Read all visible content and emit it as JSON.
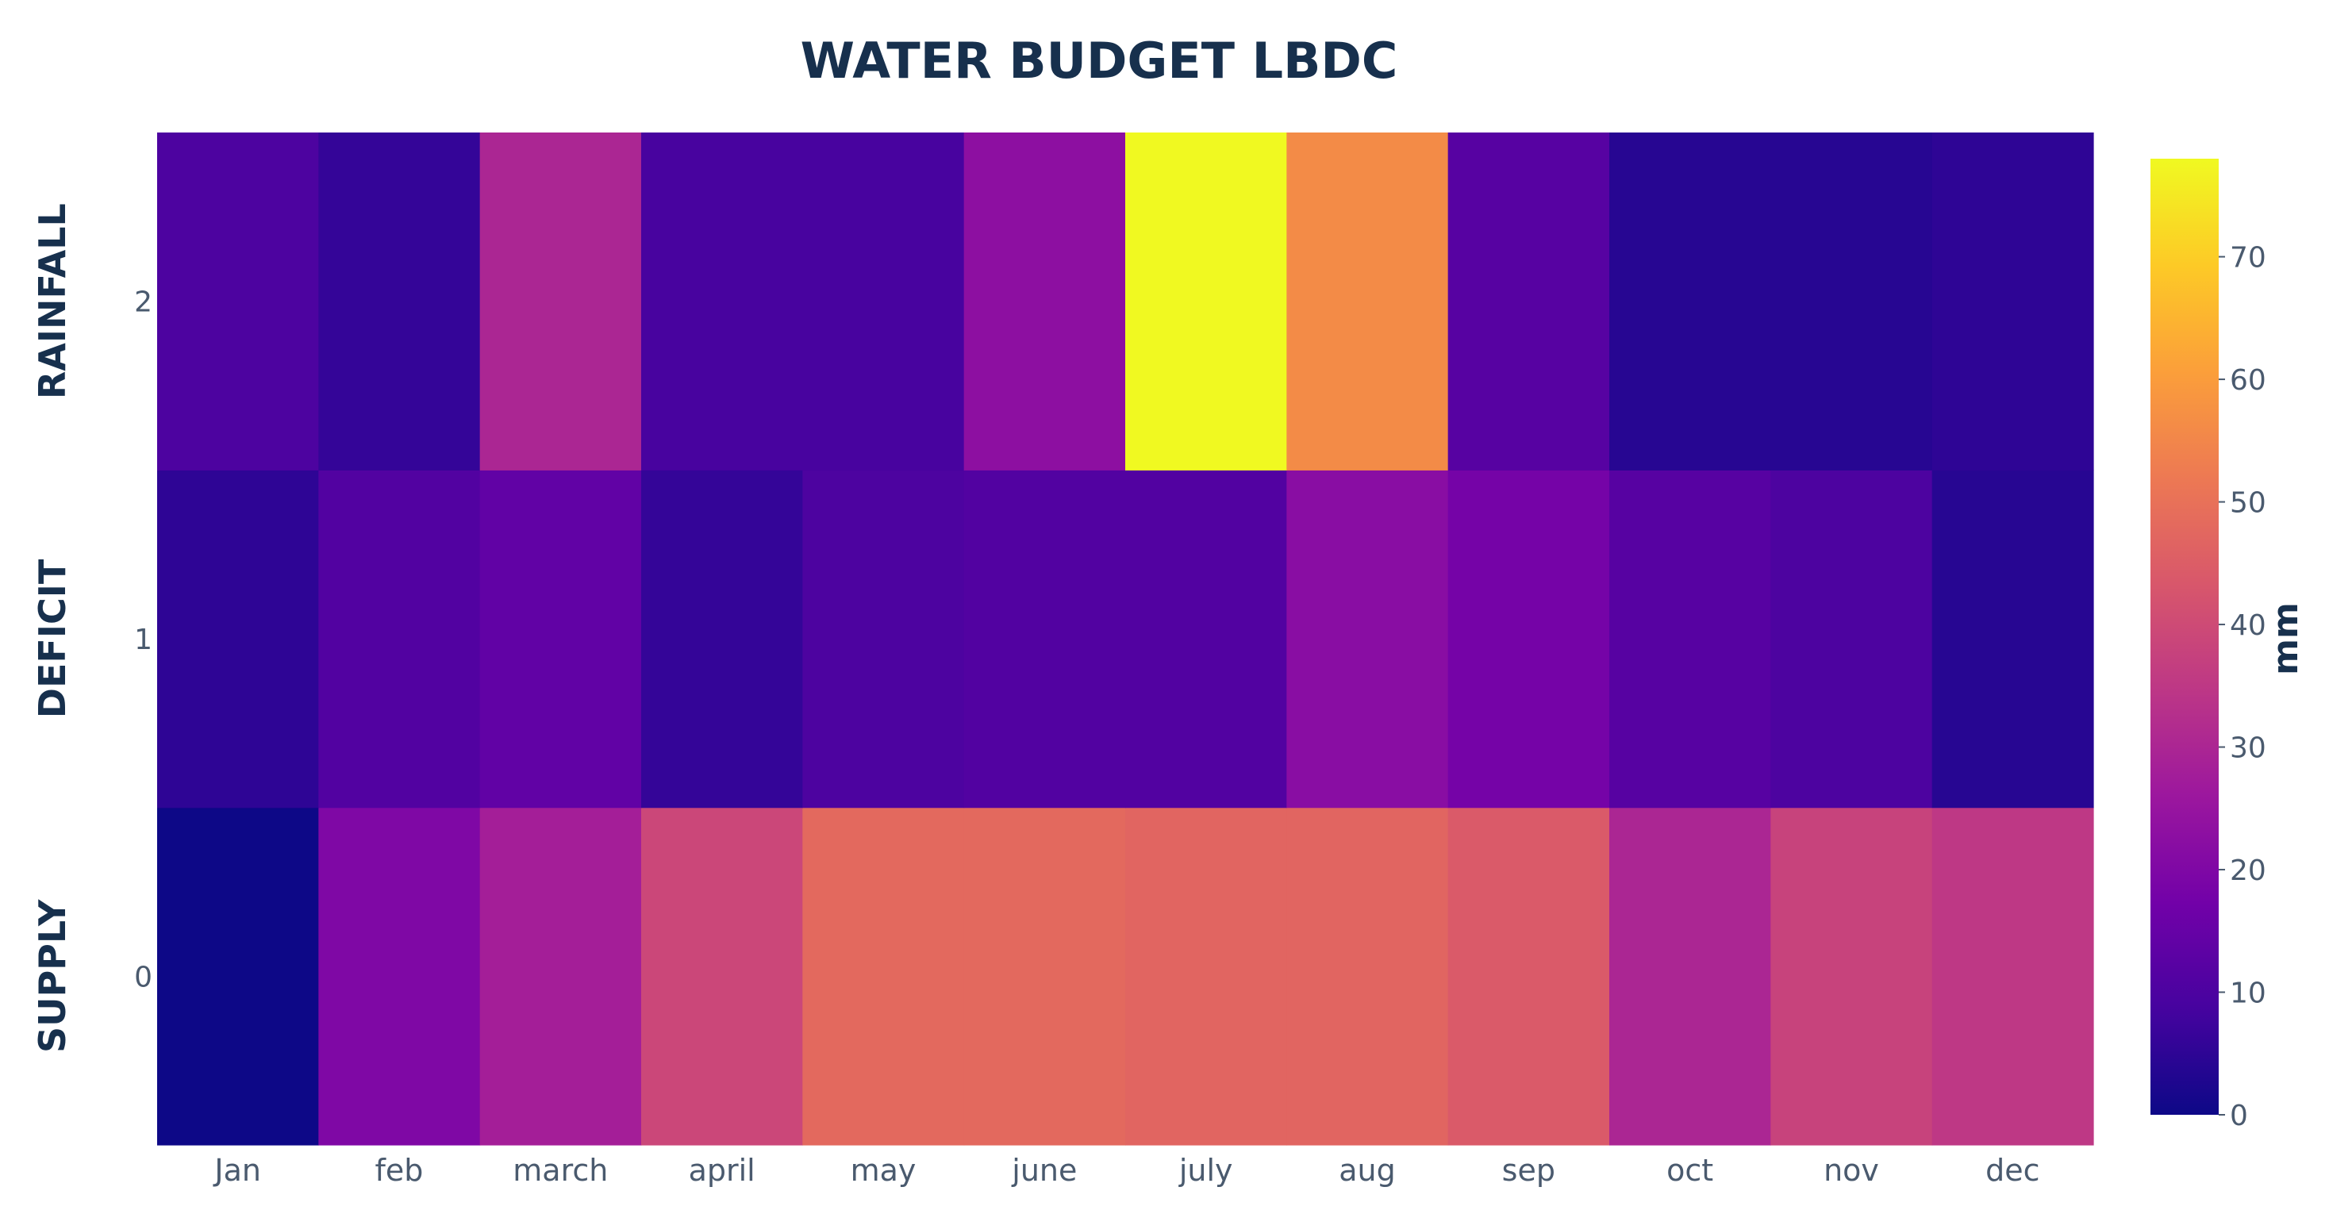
{
  "chart_data": {
    "type": "heatmap",
    "title": "WATER BUDGET LBDC",
    "x": [
      "Jan",
      "feb",
      "march",
      "april",
      "may",
      "june",
      "july",
      "aug",
      "sep",
      "oct",
      "nov",
      "dec"
    ],
    "y_ticks": [
      "0",
      "1",
      "2"
    ],
    "row_labels": [
      "SUPPLY",
      "DEFICIT",
      "RAINFALL"
    ],
    "z": [
      [
        0,
        20,
        28,
        39,
        48,
        48,
        47,
        47,
        44,
        30,
        38,
        35
      ],
      [
        5,
        11,
        14,
        6,
        10,
        11,
        11,
        22,
        18,
        12,
        10,
        4
      ],
      [
        10,
        6,
        30,
        9,
        9,
        23,
        78,
        56,
        12,
        4,
        4,
        5
      ]
    ],
    "colorbar": {
      "title": "mm",
      "range": [
        0,
        78
      ],
      "ticks": [
        "0",
        "10",
        "20",
        "30",
        "40",
        "50",
        "60",
        "70"
      ],
      "tick_values": [
        0,
        10,
        20,
        30,
        40,
        50,
        60,
        70
      ]
    },
    "colorscale": [
      "#0d0887",
      "#46039f",
      "#7201a8",
      "#9c179e",
      "#bd3786",
      "#d8576b",
      "#ed7953",
      "#fb9f3a",
      "#fdca26",
      "#f0f921"
    ]
  }
}
